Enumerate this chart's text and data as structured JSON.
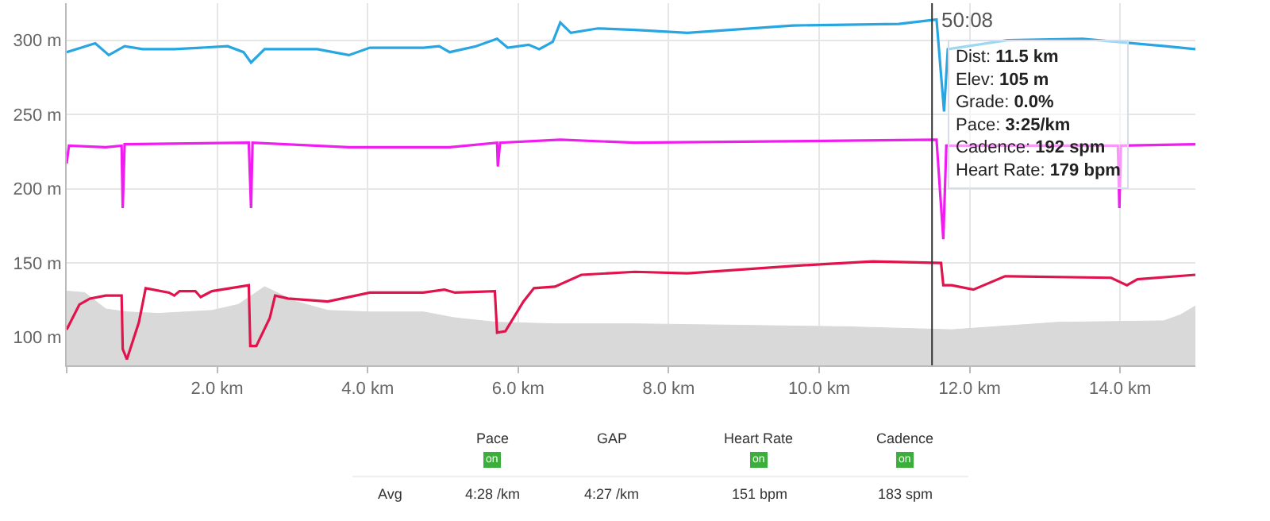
{
  "chart_data": {
    "type": "line",
    "xlim": [
      0,
      15
    ],
    "ylim": [
      81,
      325
    ],
    "xticks": [
      {
        "value": 0,
        "label": null
      },
      {
        "value": 2,
        "label": "2.0 km"
      },
      {
        "value": 4,
        "label": "4.0 km"
      },
      {
        "value": 6,
        "label": "6.0 km"
      },
      {
        "value": 8,
        "label": "8.0 km"
      },
      {
        "value": 10,
        "label": "10.0 km"
      },
      {
        "value": 12,
        "label": "12.0 km"
      },
      {
        "value": 14,
        "label": "14.0 km"
      }
    ],
    "yticks": [
      {
        "value": 100,
        "label": "100 m"
      },
      {
        "value": 150,
        "label": "150 m"
      },
      {
        "value": 200,
        "label": "200 m"
      },
      {
        "value": 250,
        "label": "250 m"
      },
      {
        "value": 300,
        "label": "300 m"
      }
    ],
    "grid": true,
    "marker": "none",
    "line_style": "solid",
    "series": [
      {
        "type": "area",
        "color": "#d9d9d9",
        "x": [
          0,
          0.24,
          0.52,
          0.8,
          1.22,
          1.93,
          2.28,
          2.63,
          3.05,
          3.47,
          4.03,
          4.74,
          5.16,
          5.72,
          6.49,
          7.55,
          10.36,
          11.76,
          13.17,
          14.58,
          14.8,
          15.0
        ],
        "values": [
          131,
          130,
          119,
          117,
          116,
          118,
          122,
          134,
          124,
          118,
          117,
          117,
          113,
          110,
          109,
          109,
          107,
          105,
          110,
          111,
          115,
          121
        ]
      },
      {
        "color": "#27a6e2",
        "x": [
          0,
          0.38,
          0.56,
          0.77,
          1.01,
          1.43,
          1.78,
          2.14,
          2.35,
          2.45,
          2.63,
          3.33,
          3.75,
          4.03,
          4.74,
          4.95,
          5.09,
          5.44,
          5.72,
          5.86,
          6.14,
          6.28,
          6.46,
          6.56,
          6.7,
          7.06,
          7.55,
          8.25,
          9.65,
          11.06,
          11.56,
          11.66,
          11.71,
          12.5,
          13.5,
          14.6,
          15.0
        ],
        "values": [
          292,
          298,
          290,
          296,
          294,
          294,
          295,
          296,
          292,
          285,
          294,
          294,
          290,
          295,
          295,
          296,
          292,
          296,
          301,
          295,
          297,
          294,
          299,
          312,
          305,
          308,
          307,
          305,
          310,
          311,
          314,
          252,
          294,
          300,
          301,
          296,
          294
        ]
      },
      {
        "color": "#f01cf0",
        "x": [
          0,
          0.03,
          0.52,
          0.73,
          0.745,
          0.77,
          2.42,
          2.45,
          2.47,
          3.75,
          5.09,
          5.72,
          5.73,
          5.76,
          6.56,
          7.55,
          11.56,
          11.65,
          11.69,
          13.97,
          13.99,
          14.01,
          15.0
        ],
        "values": [
          217,
          229,
          228,
          229,
          187,
          230,
          231,
          187,
          231,
          228,
          228,
          231,
          215,
          231,
          233,
          231,
          233,
          166,
          229,
          229,
          187,
          229,
          230
        ]
      },
      {
        "color": "#e0144c",
        "x": [
          0,
          0.17,
          0.31,
          0.52,
          0.73,
          0.745,
          0.8,
          0.96,
          1.05,
          1.36,
          1.43,
          1.5,
          1.71,
          1.78,
          1.93,
          2.42,
          2.44,
          2.52,
          2.7,
          2.77,
          2.94,
          3.47,
          4.03,
          4.74,
          5.02,
          5.16,
          5.69,
          5.72,
          5.83,
          6.07,
          6.21,
          6.49,
          6.84,
          7.55,
          8.25,
          9.65,
          10.71,
          11.62,
          11.65,
          11.76,
          12.05,
          12.47,
          13.88,
          14.09,
          14.23,
          15.0
        ],
        "values": [
          105,
          122,
          126,
          128,
          128,
          92,
          85,
          110,
          133,
          130,
          128,
          131,
          131,
          127,
          131,
          135,
          94,
          94,
          113,
          128,
          126,
          124,
          130,
          130,
          132,
          130,
          131,
          103,
          104,
          124,
          133,
          134,
          142,
          144,
          143,
          148,
          151,
          150,
          135,
          135,
          132,
          141,
          140,
          135,
          139,
          142
        ]
      }
    ],
    "ref_lines": [
      {
        "axis": "x",
        "value": 11.5,
        "color": "#333333"
      }
    ],
    "annotations": [
      "50:08",
      "Dist: 11.5 km\nElev: 105 m\nGrade: 0.0%\nPace: 3:25/km\nCadence: 192 spm\nHeart Rate: 179 bpm",
      "Pace",
      "GAP",
      "Heart Rate",
      "Cadence",
      "on",
      "on",
      "on",
      "Avg",
      "4:28 /km",
      "4:27 /km",
      "151 bpm",
      "183 spm"
    ]
  }
}
